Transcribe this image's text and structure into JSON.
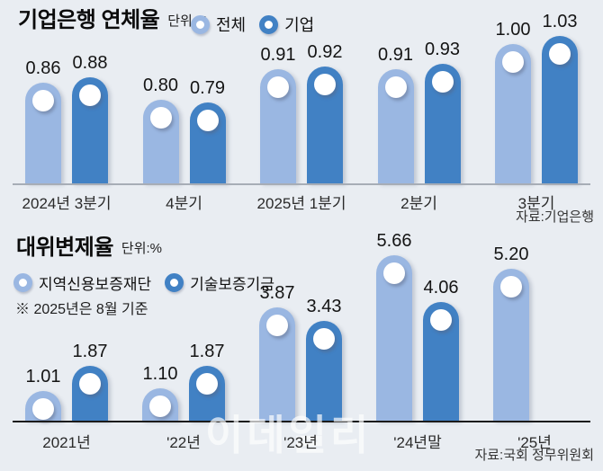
{
  "page": {
    "background": "#e9edf2",
    "watermark": "이데일리"
  },
  "chart_data": [
    {
      "id": "ibk-delinquency-rate",
      "type": "bar",
      "title": "기업은행 연체율",
      "unit": "단위:%",
      "source": "자료:기업은행",
      "legend_position": "top-right-of-title",
      "grid": false,
      "ylim": [
        0.5,
        1.1
      ],
      "categories": [
        "2024년 3분기",
        "4분기",
        "2025년 1분기",
        "2분기",
        "3분기"
      ],
      "series": [
        {
          "name": "전체",
          "color": "#9ab7e2",
          "values": [
            0.86,
            0.8,
            0.91,
            0.91,
            1.0
          ]
        },
        {
          "name": "기업",
          "color": "#4181c4",
          "values": [
            0.88,
            0.79,
            0.92,
            0.93,
            1.03
          ]
        }
      ],
      "legend": [
        {
          "label": "전체",
          "color": "#9ab7e2"
        },
        {
          "label": "기업",
          "color": "#4181c4"
        }
      ]
    },
    {
      "id": "subrogation-rate",
      "type": "bar",
      "title": "대위변제율",
      "unit": "단위:%",
      "note": "※ 2025년은 8월 기준",
      "source": "자료:국회 정무위원회",
      "legend_position": "below-title",
      "grid": false,
      "ylim": [
        0,
        6
      ],
      "categories": [
        "2021년",
        "'22년",
        "'23년",
        "'24년말",
        "'25년"
      ],
      "series": [
        {
          "name": "지역신용보증재단",
          "color": "#9ab7e2",
          "values": [
            1.01,
            1.1,
            3.87,
            5.66,
            5.2
          ]
        },
        {
          "name": "기술보증기금",
          "color": "#4181c4",
          "values": [
            1.87,
            1.87,
            3.43,
            4.06,
            null
          ]
        }
      ],
      "legend": [
        {
          "label": "지역신용보증재단",
          "color": "#9ab7e2"
        },
        {
          "label": "기술보증기금",
          "color": "#4181c4"
        }
      ]
    }
  ]
}
